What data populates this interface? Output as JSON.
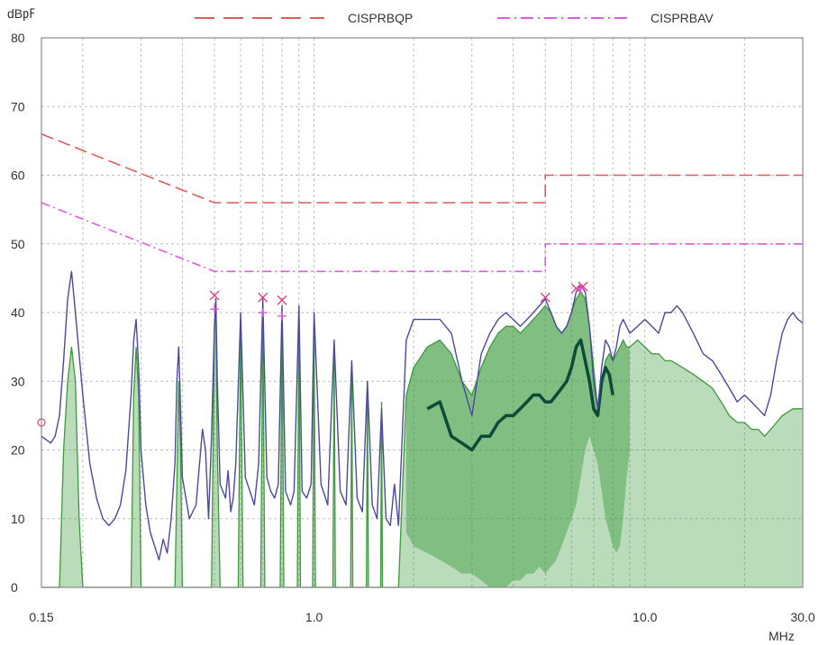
{
  "chart_data": {
    "type": "line",
    "ylabel": "dB㎊",
    "xunit": "MHz",
    "x_scale": "log",
    "xlim": [
      0.15,
      30.0
    ],
    "ylim": [
      0,
      80
    ],
    "grid": true,
    "legend_position": "top",
    "x_tick_labels": [
      "0.15",
      "1.0",
      "10.0",
      "30.0"
    ],
    "x_ticks": [
      0.15,
      1.0,
      10.0,
      30.0
    ],
    "x_minor_grid": [
      0.2,
      0.3,
      0.4,
      0.5,
      0.6,
      0.7,
      0.8,
      0.9,
      2,
      3,
      4,
      5,
      6,
      7,
      8,
      9,
      20
    ],
    "y_ticks": [
      0,
      10,
      20,
      30,
      40,
      50,
      60,
      70,
      80
    ],
    "y_tick_labels": [
      "0",
      "10",
      "20",
      "30",
      "40",
      "50",
      "60",
      "70",
      "80"
    ],
    "colors": {
      "qp_limit": "#e05a5a",
      "av_limit": "#e05ae0",
      "trace_peak": "#4a4a9a",
      "trace_avg": "#3c9a3c",
      "trace_avg_dark": "#0c4a3a",
      "grid": "#bdbdbd",
      "axis": "#8a8a8a",
      "marker": "#e0407a"
    },
    "limit_series": [
      {
        "name": "CISPRBQP",
        "style": "dash",
        "points": [
          [
            0.15,
            66
          ],
          [
            0.5,
            56
          ],
          [
            5.0,
            56
          ],
          [
            5.0,
            60
          ],
          [
            30.0,
            60
          ]
        ]
      },
      {
        "name": "CISPRBAV",
        "style": "dashdot",
        "points": [
          [
            0.15,
            56
          ],
          [
            0.5,
            46
          ],
          [
            5.0,
            46
          ],
          [
            5.0,
            50
          ],
          [
            30.0,
            50
          ]
        ]
      }
    ],
    "trace_peak": [
      [
        0.15,
        22
      ],
      [
        0.155,
        21.5
      ],
      [
        0.16,
        21
      ],
      [
        0.165,
        22
      ],
      [
        0.17,
        25
      ],
      [
        0.175,
        33
      ],
      [
        0.18,
        42
      ],
      [
        0.185,
        46
      ],
      [
        0.19,
        40
      ],
      [
        0.2,
        28
      ],
      [
        0.21,
        18
      ],
      [
        0.22,
        13
      ],
      [
        0.23,
        10
      ],
      [
        0.24,
        9
      ],
      [
        0.25,
        10
      ],
      [
        0.26,
        12
      ],
      [
        0.27,
        17
      ],
      [
        0.28,
        28
      ],
      [
        0.285,
        36
      ],
      [
        0.29,
        39
      ],
      [
        0.295,
        32
      ],
      [
        0.3,
        20
      ],
      [
        0.31,
        12
      ],
      [
        0.32,
        8
      ],
      [
        0.33,
        6
      ],
      [
        0.34,
        4
      ],
      [
        0.35,
        7
      ],
      [
        0.36,
        5
      ],
      [
        0.37,
        10
      ],
      [
        0.38,
        18
      ],
      [
        0.385,
        30
      ],
      [
        0.39,
        35
      ],
      [
        0.395,
        26
      ],
      [
        0.4,
        16
      ],
      [
        0.42,
        10
      ],
      [
        0.44,
        12
      ],
      [
        0.46,
        23
      ],
      [
        0.47,
        20
      ],
      [
        0.48,
        10
      ],
      [
        0.49,
        22
      ],
      [
        0.5,
        38
      ],
      [
        0.505,
        42
      ],
      [
        0.51,
        30
      ],
      [
        0.52,
        15
      ],
      [
        0.54,
        13
      ],
      [
        0.55,
        17
      ],
      [
        0.56,
        11
      ],
      [
        0.57,
        13
      ],
      [
        0.58,
        18
      ],
      [
        0.6,
        40
      ],
      [
        0.62,
        16
      ],
      [
        0.64,
        14
      ],
      [
        0.66,
        12
      ],
      [
        0.68,
        18
      ],
      [
        0.7,
        42
      ],
      [
        0.72,
        16
      ],
      [
        0.74,
        14
      ],
      [
        0.76,
        13
      ],
      [
        0.78,
        15
      ],
      [
        0.8,
        41
      ],
      [
        0.82,
        14
      ],
      [
        0.85,
        12
      ],
      [
        0.87,
        14
      ],
      [
        0.9,
        41
      ],
      [
        0.92,
        14
      ],
      [
        0.95,
        13
      ],
      [
        0.98,
        15
      ],
      [
        1.0,
        40
      ],
      [
        1.05,
        15
      ],
      [
        1.1,
        12
      ],
      [
        1.15,
        36
      ],
      [
        1.2,
        14
      ],
      [
        1.25,
        12
      ],
      [
        1.3,
        33
      ],
      [
        1.35,
        13
      ],
      [
        1.4,
        11
      ],
      [
        1.45,
        30
      ],
      [
        1.5,
        12
      ],
      [
        1.55,
        10
      ],
      [
        1.6,
        26
      ],
      [
        1.65,
        10
      ],
      [
        1.7,
        9
      ],
      [
        1.75,
        15
      ],
      [
        1.8,
        9
      ],
      [
        1.9,
        36
      ],
      [
        2.0,
        39
      ],
      [
        2.2,
        39
      ],
      [
        2.4,
        39
      ],
      [
        2.6,
        37
      ],
      [
        2.8,
        30
      ],
      [
        3.0,
        25
      ],
      [
        3.2,
        34
      ],
      [
        3.4,
        37
      ],
      [
        3.6,
        39
      ],
      [
        3.8,
        40
      ],
      [
        4.0,
        39
      ],
      [
        4.2,
        38
      ],
      [
        4.4,
        39
      ],
      [
        4.6,
        40
      ],
      [
        4.8,
        41
      ],
      [
        5.0,
        42
      ],
      [
        5.2,
        40
      ],
      [
        5.4,
        38
      ],
      [
        5.6,
        37
      ],
      [
        5.8,
        38
      ],
      [
        6.0,
        40
      ],
      [
        6.2,
        43
      ],
      [
        6.4,
        44
      ],
      [
        6.6,
        43
      ],
      [
        6.8,
        38
      ],
      [
        7.0,
        30
      ],
      [
        7.2,
        26
      ],
      [
        7.4,
        32
      ],
      [
        7.6,
        36
      ],
      [
        7.8,
        35
      ],
      [
        8.0,
        33
      ],
      [
        8.2,
        35
      ],
      [
        8.4,
        38
      ],
      [
        8.6,
        39
      ],
      [
        8.8,
        38
      ],
      [
        9.0,
        37
      ],
      [
        9.5,
        38
      ],
      [
        10.0,
        39
      ],
      [
        10.5,
        38
      ],
      [
        11.0,
        37
      ],
      [
        11.5,
        40
      ],
      [
        12.0,
        40
      ],
      [
        12.5,
        41
      ],
      [
        13.0,
        40
      ],
      [
        14.0,
        37
      ],
      [
        15.0,
        34
      ],
      [
        16.0,
        33
      ],
      [
        17.0,
        31
      ],
      [
        18.0,
        29
      ],
      [
        19.0,
        27
      ],
      [
        20.0,
        28
      ],
      [
        21.0,
        27
      ],
      [
        22.0,
        26
      ],
      [
        23.0,
        25
      ],
      [
        24.0,
        28
      ],
      [
        25.0,
        33
      ],
      [
        26.0,
        37
      ],
      [
        27.0,
        39
      ],
      [
        28.0,
        40
      ],
      [
        29.0,
        39
      ],
      [
        30.0,
        38.5
      ]
    ],
    "trace_avg_envelope": [
      [
        0.15,
        0
      ],
      [
        0.17,
        0
      ],
      [
        0.175,
        20
      ],
      [
        0.18,
        30
      ],
      [
        0.185,
        35
      ],
      [
        0.19,
        30
      ],
      [
        0.195,
        10
      ],
      [
        0.2,
        0
      ],
      [
        0.28,
        0
      ],
      [
        0.285,
        28
      ],
      [
        0.29,
        35
      ],
      [
        0.295,
        28
      ],
      [
        0.3,
        0
      ],
      [
        0.38,
        0
      ],
      [
        0.39,
        30
      ],
      [
        0.395,
        20
      ],
      [
        0.4,
        0
      ],
      [
        0.49,
        0
      ],
      [
        0.5,
        38
      ],
      [
        0.505,
        40
      ],
      [
        0.51,
        20
      ],
      [
        0.52,
        0
      ],
      [
        0.59,
        0
      ],
      [
        0.6,
        38
      ],
      [
        0.61,
        0
      ],
      [
        0.69,
        0
      ],
      [
        0.7,
        40
      ],
      [
        0.71,
        0
      ],
      [
        0.79,
        0
      ],
      [
        0.8,
        40
      ],
      [
        0.81,
        0
      ],
      [
        0.89,
        0
      ],
      [
        0.9,
        40
      ],
      [
        0.91,
        0
      ],
      [
        0.99,
        0
      ],
      [
        1.0,
        38
      ],
      [
        1.01,
        0
      ],
      [
        1.14,
        0
      ],
      [
        1.15,
        35
      ],
      [
        1.16,
        0
      ],
      [
        1.29,
        0
      ],
      [
        1.3,
        32
      ],
      [
        1.31,
        0
      ],
      [
        1.44,
        0
      ],
      [
        1.45,
        30
      ],
      [
        1.46,
        0
      ],
      [
        1.59,
        0
      ],
      [
        1.6,
        27
      ],
      [
        1.61,
        0
      ],
      [
        1.8,
        0
      ],
      [
        1.9,
        28
      ],
      [
        2.0,
        32
      ],
      [
        2.2,
        35
      ],
      [
        2.4,
        36
      ],
      [
        2.6,
        34
      ],
      [
        2.8,
        30
      ],
      [
        3.0,
        28
      ],
      [
        3.2,
        32
      ],
      [
        3.4,
        35
      ],
      [
        3.6,
        37
      ],
      [
        3.8,
        38
      ],
      [
        4.0,
        38
      ],
      [
        4.2,
        37
      ],
      [
        4.4,
        38
      ],
      [
        4.6,
        39
      ],
      [
        4.8,
        40
      ],
      [
        5.0,
        41
      ],
      [
        5.2,
        40
      ],
      [
        5.4,
        38
      ],
      [
        5.6,
        37
      ],
      [
        5.8,
        38
      ],
      [
        6.0,
        40
      ],
      [
        6.2,
        42
      ],
      [
        6.4,
        43
      ],
      [
        6.6,
        42
      ],
      [
        6.8,
        38
      ],
      [
        7.0,
        32
      ],
      [
        7.2,
        26
      ],
      [
        7.4,
        30
      ],
      [
        7.6,
        33
      ],
      [
        7.8,
        34
      ],
      [
        8.0,
        33
      ],
      [
        8.2,
        34
      ],
      [
        8.4,
        35
      ],
      [
        8.6,
        36
      ],
      [
        8.8,
        35
      ],
      [
        9.0,
        35
      ],
      [
        9.5,
        36
      ],
      [
        10.0,
        35
      ],
      [
        10.5,
        34
      ],
      [
        11.0,
        34
      ],
      [
        11.5,
        33
      ],
      [
        12.0,
        33
      ],
      [
        13.0,
        32
      ],
      [
        14.0,
        31
      ],
      [
        15.0,
        30
      ],
      [
        16.0,
        29
      ],
      [
        17.0,
        27
      ],
      [
        18.0,
        25
      ],
      [
        19.0,
        24
      ],
      [
        20.0,
        24
      ],
      [
        21.0,
        23
      ],
      [
        22.0,
        23
      ],
      [
        23.0,
        22
      ],
      [
        24.0,
        23
      ],
      [
        25.0,
        24
      ],
      [
        26.0,
        25
      ],
      [
        27.0,
        25.5
      ],
      [
        28.0,
        26
      ],
      [
        29.0,
        26
      ],
      [
        30.0,
        26
      ]
    ],
    "trace_avg_band": [
      [
        1.9,
        8,
        28
      ],
      [
        2.0,
        6,
        32
      ],
      [
        2.2,
        5,
        35
      ],
      [
        2.4,
        4,
        36
      ],
      [
        2.6,
        3,
        34
      ],
      [
        2.8,
        2,
        30
      ],
      [
        3.0,
        2,
        28
      ],
      [
        3.2,
        1,
        32
      ],
      [
        3.4,
        0,
        35
      ],
      [
        3.6,
        0,
        37
      ],
      [
        3.8,
        0,
        38
      ],
      [
        4.0,
        1,
        38
      ],
      [
        4.2,
        1,
        37
      ],
      [
        4.4,
        2,
        38
      ],
      [
        4.6,
        2,
        39
      ],
      [
        4.8,
        3,
        40
      ],
      [
        5.0,
        2,
        41
      ],
      [
        5.2,
        3,
        40
      ],
      [
        5.4,
        4,
        38
      ],
      [
        5.6,
        6,
        37
      ],
      [
        5.8,
        8,
        38
      ],
      [
        6.0,
        10,
        40
      ],
      [
        6.2,
        12,
        42
      ],
      [
        6.4,
        16,
        43
      ],
      [
        6.6,
        20,
        42
      ],
      [
        6.8,
        22,
        38
      ],
      [
        7.0,
        20,
        32
      ],
      [
        7.2,
        18,
        26
      ],
      [
        7.4,
        14,
        30
      ],
      [
        7.6,
        10,
        33
      ],
      [
        7.8,
        8,
        34
      ],
      [
        8.0,
        6,
        33
      ],
      [
        8.2,
        5,
        34
      ],
      [
        8.4,
        6,
        35
      ],
      [
        8.6,
        10,
        36
      ],
      [
        8.8,
        16,
        35
      ],
      [
        9.0,
        20,
        35
      ]
    ],
    "trace_avg_dark": [
      [
        2.2,
        26
      ],
      [
        2.4,
        27
      ],
      [
        2.6,
        22
      ],
      [
        2.8,
        21
      ],
      [
        3.0,
        20
      ],
      [
        3.2,
        22
      ],
      [
        3.4,
        22
      ],
      [
        3.6,
        24
      ],
      [
        3.8,
        25
      ],
      [
        4.0,
        25
      ],
      [
        4.2,
        26
      ],
      [
        4.4,
        27
      ],
      [
        4.6,
        28
      ],
      [
        4.8,
        28
      ],
      [
        5.0,
        27
      ],
      [
        5.2,
        27
      ],
      [
        5.4,
        28
      ],
      [
        5.6,
        29
      ],
      [
        5.8,
        30
      ],
      [
        6.0,
        32
      ],
      [
        6.2,
        35
      ],
      [
        6.4,
        36
      ],
      [
        6.6,
        33
      ],
      [
        6.8,
        30
      ],
      [
        7.0,
        26
      ],
      [
        7.2,
        25
      ],
      [
        7.4,
        30
      ],
      [
        7.6,
        32
      ],
      [
        7.8,
        31
      ],
      [
        8.0,
        28
      ]
    ],
    "markers_x": [
      [
        0.5,
        42.5
      ],
      [
        0.7,
        42.2
      ],
      [
        0.8,
        41.8
      ],
      [
        5.0,
        42.2
      ],
      [
        6.2,
        43.5
      ],
      [
        6.5,
        43.8
      ]
    ],
    "markers_plus": [
      [
        0.5,
        40.5
      ],
      [
        0.7,
        40
      ],
      [
        0.8,
        39.5
      ],
      [
        6.4,
        43.5
      ]
    ],
    "edge_marker": [
      0.15,
      24
    ]
  }
}
